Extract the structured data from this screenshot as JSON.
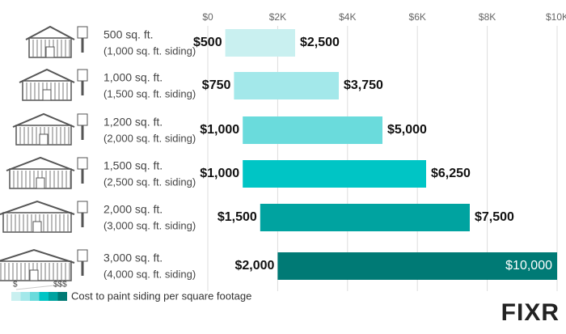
{
  "chart_data": {
    "type": "floating_bar",
    "categories": [
      "500 sq. ft.",
      "1,000 sq. ft.",
      "1,200 sq. ft.",
      "1,500 sq. ft.",
      "2,000 sq. ft.",
      "3,000 sq. ft."
    ],
    "category_notes": [
      "(1,000 sq. ft. siding)",
      "(1,500 sq. ft. siding)",
      "(2,000 sq. ft. siding)",
      "(2,500 sq. ft. siding)",
      "(3,000 sq. ft. siding)",
      "(4,000 sq. ft. siding)"
    ],
    "low": {
      "values": [
        500,
        750,
        1000,
        1000,
        1500,
        2000
      ],
      "value_labels": [
        "$500",
        "$750",
        "$1,000",
        "$1,000",
        "$1,500",
        "$2,000"
      ]
    },
    "high": {
      "values": [
        2500,
        3750,
        5000,
        6250,
        7500,
        10000
      ],
      "value_labels": [
        "$2,500",
        "$3,750",
        "$5,000",
        "$6,250",
        "$7,500",
        "$10,000"
      ]
    },
    "colors": [
      "#c9f0f0",
      "#a3e8ea",
      "#6adbdc",
      "#00c5c5",
      "#00a3a0",
      "#007a75"
    ],
    "xlim": [
      0,
      10000
    ],
    "xticks": [
      {
        "value": 0,
        "label": "$0"
      },
      {
        "value": 2000,
        "label": "$2K"
      },
      {
        "value": 4000,
        "label": "$4K"
      },
      {
        "value": 6000,
        "label": "$6K"
      },
      {
        "value": 8000,
        "label": "$8K"
      },
      {
        "value": 10000,
        "label": "$10K"
      }
    ],
    "grid": true,
    "legend": {
      "low_label": "$",
      "high_label": "$$$",
      "text": "Cost to paint siding per square footage"
    },
    "logo": "FIXR"
  }
}
